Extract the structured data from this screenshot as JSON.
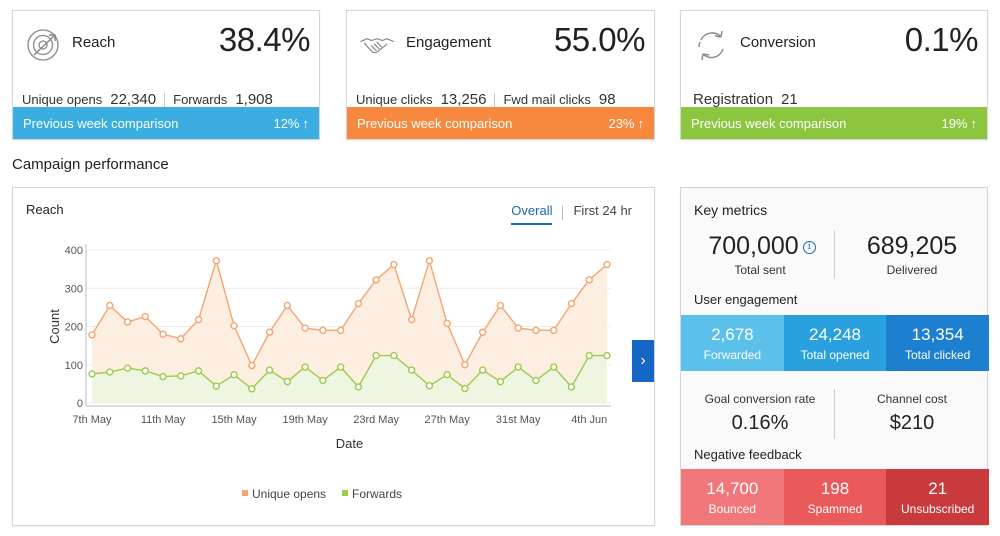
{
  "kpis": {
    "reach": {
      "title": "Reach",
      "value": "38.4%",
      "sub1_label": "Unique opens",
      "sub1_value": "22,340",
      "sub2_label": "Forwards",
      "sub2_value": "1,908",
      "comparison_label": "Previous week comparison",
      "comparison_pct": "12%",
      "color": "#3aaee0",
      "icon": "target-icon"
    },
    "engagement": {
      "title": "Engagement",
      "value": "55.0%",
      "sub1_label": "Unique clicks",
      "sub1_value": "13,256",
      "sub2_label": "Fwd mail clicks",
      "sub2_value": "98",
      "comparison_label": "Previous week comparison",
      "comparison_pct": "23%",
      "color": "#f7893f",
      "icon": "handshake-icon"
    },
    "conversion": {
      "title": "Conversion",
      "value": "0.1%",
      "sub1_label": "Registration",
      "sub1_value": "21",
      "comparison_label": "Previous week comparison",
      "comparison_pct": "19%",
      "color": "#8cc63f",
      "icon": "cycle-icon"
    }
  },
  "section_title": "Campaign performance",
  "chart_panel": {
    "title": "Reach",
    "tabs": [
      "Overall",
      "First 24 hr"
    ],
    "active_tab": "Overall"
  },
  "chart_data": {
    "type": "area",
    "xlabel": "Date",
    "ylabel": "Count",
    "ylim": [
      0,
      400
    ],
    "yticks": [
      0,
      100,
      200,
      300,
      400
    ],
    "x_tick_labels": [
      "7th May",
      "11th May",
      "15th May",
      "19th May",
      "23rd May",
      "27th May",
      "31st May",
      "4th Jun"
    ],
    "x": [
      "7th May",
      "8th May",
      "9th May",
      "10th May",
      "11th May",
      "12th May",
      "13th May",
      "14th May",
      "15th May",
      "16th May",
      "17th May",
      "18th May",
      "19th May",
      "20th May",
      "21st May",
      "22nd May",
      "23rd May",
      "24th May",
      "25th May",
      "26th May",
      "27th May",
      "28th May",
      "29th May",
      "30th May",
      "31st May",
      "1st Jun",
      "2nd Jun",
      "3rd Jun",
      "4th Jun",
      "5th Jun"
    ],
    "series": [
      {
        "name": "Unique opens",
        "color": "#f4a570",
        "fill": "#fdeee2",
        "values": [
          178,
          255,
          212,
          226,
          180,
          168,
          218,
          372,
          202,
          98,
          185,
          255,
          196,
          190,
          190,
          260,
          322,
          362,
          218,
          372,
          208,
          100,
          185,
          255,
          196,
          190,
          190,
          260,
          322,
          362
        ]
      },
      {
        "name": "Forwards",
        "color": "#9ccb49",
        "fill": "#eef6e2",
        "values": [
          76,
          81,
          91,
          84,
          69,
          71,
          84,
          44,
          74,
          37,
          86,
          56,
          94,
          59,
          94,
          42,
          124,
          124,
          86,
          45,
          74,
          38,
          86,
          56,
          94,
          59,
          94,
          42,
          124,
          124
        ]
      }
    ],
    "legend_position": "bottom"
  },
  "key_metrics": {
    "title": "Key metrics",
    "total_sent": "700,000",
    "total_sent_label": "Total sent",
    "delivered": "689,205",
    "delivered_label": "Delivered",
    "user_engagement_title": "User engagement",
    "engagement_tiles": [
      {
        "value": "2,678",
        "label": "Forwarded",
        "color": "#5bc0ea"
      },
      {
        "value": "24,248",
        "label": "Total opened",
        "color": "#2aa0df"
      },
      {
        "value": "13,354",
        "label": "Total clicked",
        "color": "#1c7fd0"
      }
    ],
    "goal_rate_label": "Goal conversion rate",
    "goal_rate_value": "0.16%",
    "channel_cost_label": "Channel cost",
    "channel_cost_value": "$210",
    "negative_feedback_title": "Negative feedback",
    "negative_tiles": [
      {
        "value": "14,700",
        "label": "Bounced",
        "color": "#f2777a"
      },
      {
        "value": "198",
        "label": "Spammed",
        "color": "#ea5a5b"
      },
      {
        "value": "21",
        "label": "Unsubscribed",
        "color": "#c83a3c"
      }
    ]
  }
}
